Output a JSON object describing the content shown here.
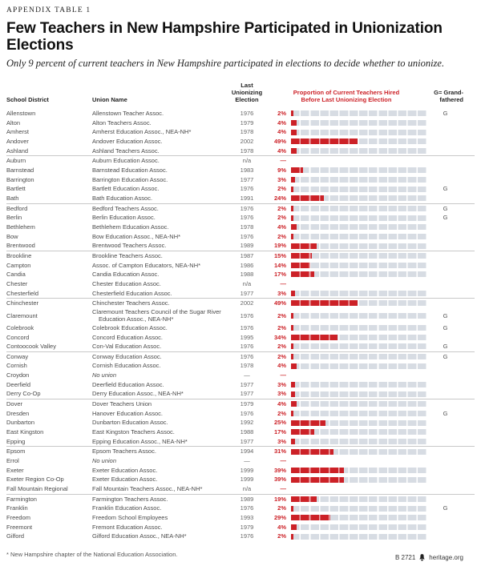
{
  "eyebrow": "APPENDIX TABLE 1",
  "title": "Few Teachers in New Hampshire Participated in Unionization Elections",
  "subtitle": "Only 9 percent of current teachers in New Hampshire participated in elections to decide whether to unionize.",
  "header": {
    "school_district": "School District",
    "union_name": "Union Name",
    "election_line1": "Last",
    "election_line2": "Unionizing",
    "election_line3": "Election",
    "proportion_line1": "Proportion of Current Teachers Hired",
    "proportion_line2": "Before Last Unionizing Election",
    "grandfathered_line1": "G= Grand-",
    "grandfathered_line2": "fathered"
  },
  "footnote": "* New Hampshire chapter of the National Education Association.",
  "footer": {
    "report_id": "B 2721",
    "logo_icon": "heritage-bell-icon",
    "site": "heritage.org"
  },
  "colors": {
    "accent_red": "#cc2127",
    "bar_track": "#d7dce3",
    "separator": "#c8c8c8"
  },
  "chart_data": {
    "type": "table",
    "title": "Few Teachers in New Hampshire Participated in Unionization Elections",
    "columns": [
      "School District",
      "Union Name",
      "Last Unionizing Election",
      "Proportion of Current Teachers Hired Before Last Unionizing Election",
      "G= Grandfathered"
    ],
    "bar_scale_max_percent": 100,
    "rows": [
      {
        "district": "Allenstown",
        "union": "Allenstown Teacher Assoc.",
        "union_italic": false,
        "year": "1976",
        "pct_label": "2%",
        "pct_value": 2,
        "grandfathered": "G",
        "separator_after": false
      },
      {
        "district": "Alton",
        "union": "Alton Teachers Assoc.",
        "union_italic": false,
        "year": "1979",
        "pct_label": "4%",
        "pct_value": 4,
        "grandfathered": "",
        "separator_after": false
      },
      {
        "district": "Amherst",
        "union": "Amherst Education Assoc., NEA-NH*",
        "union_italic": false,
        "year": "1978",
        "pct_label": "4%",
        "pct_value": 4,
        "grandfathered": "",
        "separator_after": false
      },
      {
        "district": "Andover",
        "union": "Andover Education Assoc.",
        "union_italic": false,
        "year": "2002",
        "pct_label": "49%",
        "pct_value": 49,
        "grandfathered": "",
        "separator_after": false
      },
      {
        "district": "Ashland",
        "union": "Ashland Teachers Assoc.",
        "union_italic": false,
        "year": "1978",
        "pct_label": "4%",
        "pct_value": 4,
        "grandfathered": "",
        "separator_after": true
      },
      {
        "district": "Auburn",
        "union": "Auburn Education Assoc.",
        "union_italic": false,
        "year": "n/a",
        "pct_label": "—",
        "pct_value": null,
        "grandfathered": "",
        "separator_after": false
      },
      {
        "district": "Barnstead",
        "union": "Barnstead Education Assoc.",
        "union_italic": false,
        "year": "1983",
        "pct_label": "9%",
        "pct_value": 9,
        "grandfathered": "",
        "separator_after": false
      },
      {
        "district": "Barrington",
        "union": "Barrington Education Assoc.",
        "union_italic": false,
        "year": "1977",
        "pct_label": "3%",
        "pct_value": 3,
        "grandfathered": "",
        "separator_after": false
      },
      {
        "district": "Bartlett",
        "union": "Bartlett Education Assoc.",
        "union_italic": false,
        "year": "1976",
        "pct_label": "2%",
        "pct_value": 2,
        "grandfathered": "G",
        "separator_after": false
      },
      {
        "district": "Bath",
        "union": "Bath Education Assoc.",
        "union_italic": false,
        "year": "1991",
        "pct_label": "24%",
        "pct_value": 24,
        "grandfathered": "",
        "separator_after": true
      },
      {
        "district": "Bedford",
        "union": "Bedford Teachers Assoc.",
        "union_italic": false,
        "year": "1976",
        "pct_label": "2%",
        "pct_value": 2,
        "grandfathered": "G",
        "separator_after": false
      },
      {
        "district": "Berlin",
        "union": "Berlin Education Assoc.",
        "union_italic": false,
        "year": "1976",
        "pct_label": "2%",
        "pct_value": 2,
        "grandfathered": "G",
        "separator_after": false
      },
      {
        "district": "Bethlehem",
        "union": "Bethlehem Education Assoc.",
        "union_italic": false,
        "year": "1978",
        "pct_label": "4%",
        "pct_value": 4,
        "grandfathered": "",
        "separator_after": false
      },
      {
        "district": "Bow",
        "union": "Bow Education Assoc., NEA-NH*",
        "union_italic": false,
        "year": "1976",
        "pct_label": "2%",
        "pct_value": 2,
        "grandfathered": "",
        "separator_after": false
      },
      {
        "district": "Brentwood",
        "union": "Brentwood Teachers Assoc.",
        "union_italic": false,
        "year": "1989",
        "pct_label": "19%",
        "pct_value": 19,
        "grandfathered": "",
        "separator_after": true
      },
      {
        "district": "Brookline",
        "union": "Brookline Teachers Assoc.",
        "union_italic": false,
        "year": "1987",
        "pct_label": "15%",
        "pct_value": 15,
        "grandfathered": "",
        "separator_after": false
      },
      {
        "district": "Campton",
        "union": "Assoc. of Campton Educators, NEA-NH*",
        "union_italic": false,
        "year": "1986",
        "pct_label": "14%",
        "pct_value": 14,
        "grandfathered": "",
        "separator_after": false
      },
      {
        "district": "Candia",
        "union": "Candia Education Assoc.",
        "union_italic": false,
        "year": "1988",
        "pct_label": "17%",
        "pct_value": 17,
        "grandfathered": "",
        "separator_after": false
      },
      {
        "district": "Chester",
        "union": "Chester Education Assoc.",
        "union_italic": false,
        "year": "n/a",
        "pct_label": "—",
        "pct_value": null,
        "grandfathered": "",
        "separator_after": false
      },
      {
        "district": "Chesterfield",
        "union": "Chesterfield Education Assoc.",
        "union_italic": false,
        "year": "1977",
        "pct_label": "3%",
        "pct_value": 3,
        "grandfathered": "",
        "separator_after": true
      },
      {
        "district": "Chinchester",
        "union": "Chinchester Teachers Assoc.",
        "union_italic": false,
        "year": "2002",
        "pct_label": "49%",
        "pct_value": 49,
        "grandfathered": "",
        "separator_after": false
      },
      {
        "district": "Claremount",
        "union": "Claremount Teachers Council of the Sugar River Education Assoc., NEA-NH*",
        "union_italic": false,
        "year": "1976",
        "pct_label": "2%",
        "pct_value": 2,
        "grandfathered": "G",
        "separator_after": false
      },
      {
        "district": "Colebrook",
        "union": "Colebrook Education Assoc.",
        "union_italic": false,
        "year": "1976",
        "pct_label": "2%",
        "pct_value": 2,
        "grandfathered": "G",
        "separator_after": false
      },
      {
        "district": "Concord",
        "union": "Concord Education Assoc.",
        "union_italic": false,
        "year": "1995",
        "pct_label": "34%",
        "pct_value": 34,
        "grandfathered": "",
        "separator_after": false
      },
      {
        "district": "Contoocook Valley",
        "union": "Con-Val Education Assoc.",
        "union_italic": false,
        "year": "1976",
        "pct_label": "2%",
        "pct_value": 2,
        "grandfathered": "G",
        "separator_after": true
      },
      {
        "district": "Conway",
        "union": "Conway Education Assoc.",
        "union_italic": false,
        "year": "1976",
        "pct_label": "2%",
        "pct_value": 2,
        "grandfathered": "G",
        "separator_after": false
      },
      {
        "district": "Cornish",
        "union": "Cornish Education Assoc.",
        "union_italic": false,
        "year": "1978",
        "pct_label": "4%",
        "pct_value": 4,
        "grandfathered": "",
        "separator_after": false
      },
      {
        "district": "Croydon",
        "union": "No union",
        "union_italic": true,
        "year": "—",
        "pct_label": "—",
        "pct_value": null,
        "grandfathered": "",
        "separator_after": false
      },
      {
        "district": "Deerfield",
        "union": "Deerfield Education Assoc.",
        "union_italic": false,
        "year": "1977",
        "pct_label": "3%",
        "pct_value": 3,
        "grandfathered": "",
        "separator_after": false
      },
      {
        "district": "Derry Co-Op",
        "union": "Derry Education Assoc., NEA-NH*",
        "union_italic": false,
        "year": "1977",
        "pct_label": "3%",
        "pct_value": 3,
        "grandfathered": "",
        "separator_after": true
      },
      {
        "district": "Dover",
        "union": "Dover Teachers Union",
        "union_italic": false,
        "year": "1979",
        "pct_label": "4%",
        "pct_value": 4,
        "grandfathered": "",
        "separator_after": false
      },
      {
        "district": "Dresden",
        "union": "Hanover Education Assoc.",
        "union_italic": false,
        "year": "1976",
        "pct_label": "2%",
        "pct_value": 2,
        "grandfathered": "G",
        "separator_after": false
      },
      {
        "district": "Dunbarton",
        "union": "Dunbarton Education Assoc.",
        "union_italic": false,
        "year": "1992",
        "pct_label": "25%",
        "pct_value": 25,
        "grandfathered": "",
        "separator_after": false
      },
      {
        "district": "East Kingston",
        "union": "East Kingston Teachers Assoc.",
        "union_italic": false,
        "year": "1988",
        "pct_label": "17%",
        "pct_value": 17,
        "grandfathered": "",
        "separator_after": false
      },
      {
        "district": "Epping",
        "union": "Epping Education Assoc., NEA-NH*",
        "union_italic": false,
        "year": "1977",
        "pct_label": "3%",
        "pct_value": 3,
        "grandfathered": "",
        "separator_after": true
      },
      {
        "district": "Epsom",
        "union": "Epsom Teachers Assoc.",
        "union_italic": false,
        "year": "1994",
        "pct_label": "31%",
        "pct_value": 31,
        "grandfathered": "",
        "separator_after": false
      },
      {
        "district": "Errol",
        "union": "No union",
        "union_italic": true,
        "year": "—",
        "pct_label": "—",
        "pct_value": null,
        "grandfathered": "",
        "separator_after": false
      },
      {
        "district": "Exeter",
        "union": "Exeter Education Assoc.",
        "union_italic": false,
        "year": "1999",
        "pct_label": "39%",
        "pct_value": 39,
        "grandfathered": "",
        "separator_after": false
      },
      {
        "district": "Exeter Region Co-Op",
        "union": "Exeter Education Assoc.",
        "union_italic": false,
        "year": "1999",
        "pct_label": "39%",
        "pct_value": 39,
        "grandfathered": "",
        "separator_after": false
      },
      {
        "district": "Fall Mountain Regional",
        "union": "Fall Mountain Teachers Assoc., NEA-NH*",
        "union_italic": false,
        "year": "n/a",
        "pct_label": "—",
        "pct_value": null,
        "grandfathered": "",
        "separator_after": true
      },
      {
        "district": "Farmington",
        "union": "Farmington Teachers Assoc.",
        "union_italic": false,
        "year": "1989",
        "pct_label": "19%",
        "pct_value": 19,
        "grandfathered": "",
        "separator_after": false
      },
      {
        "district": "Franklin",
        "union": "Franklin Education Assoc.",
        "union_italic": false,
        "year": "1976",
        "pct_label": "2%",
        "pct_value": 2,
        "grandfathered": "G",
        "separator_after": false
      },
      {
        "district": "Freedom",
        "union": "Freedom School Employees",
        "union_italic": false,
        "year": "1993",
        "pct_label": "29%",
        "pct_value": 29,
        "grandfathered": "",
        "separator_after": false
      },
      {
        "district": "Freemont",
        "union": "Fremont Education Assoc.",
        "union_italic": false,
        "year": "1979",
        "pct_label": "4%",
        "pct_value": 4,
        "grandfathered": "",
        "separator_after": false
      },
      {
        "district": "Gilford",
        "union": "Gilford Education Assoc., NEA-NH*",
        "union_italic": false,
        "year": "1976",
        "pct_label": "2%",
        "pct_value": 2,
        "grandfathered": "",
        "separator_after": false
      }
    ]
  }
}
